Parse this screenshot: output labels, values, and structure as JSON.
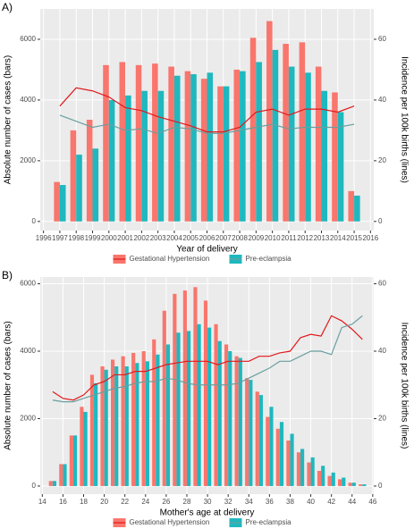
{
  "chart_data": [
    {
      "type": "bar_line",
      "label": "A)",
      "xlabel": "Year of delivery",
      "ylabel": "Absolute number of cases (bars)",
      "y2label": "Incidence per 100k births (lines)",
      "x": [
        1997,
        1998,
        1999,
        2000,
        2001,
        2002,
        2003,
        2004,
        2005,
        2006,
        2007,
        2008,
        2009,
        2010,
        2011,
        2012,
        2013,
        2014,
        2015
      ],
      "xlim": [
        1995.8,
        2016.2
      ],
      "xticks": [
        1996,
        1997,
        1998,
        1999,
        2000,
        2001,
        2002,
        2003,
        2004,
        2005,
        2006,
        2007,
        2008,
        2009,
        2010,
        2011,
        2012,
        2013,
        2014,
        2015,
        2016
      ],
      "ylim": [
        -300,
        7000
      ],
      "yticks": [
        0,
        2000,
        4000,
        6000
      ],
      "y2lim": [
        -3,
        70
      ],
      "y2ticks": [
        0,
        20,
        40,
        60
      ],
      "grid": true,
      "series": [
        {
          "name": "Gestational Hypertension",
          "color": "#f8766d",
          "values": [
            1300,
            3000,
            3350,
            5150,
            5250,
            5150,
            5200,
            5100,
            4950,
            4700,
            4450,
            5000,
            6050,
            6600,
            5850,
            5900,
            5100,
            4250,
            1000
          ]
        },
        {
          "name": "Pre-eclampsia",
          "color": "#1fb8be",
          "values": [
            1200,
            2200,
            2400,
            4000,
            4150,
            4300,
            4300,
            4800,
            4850,
            4900,
            4450,
            4950,
            5250,
            5650,
            5100,
            4900,
            4300,
            3600,
            850
          ]
        },
        {
          "type": "line",
          "axis": "y2",
          "color": "#e0191c",
          "values": [
            38,
            44,
            43,
            41,
            37.5,
            36.5,
            34.5,
            33,
            31.5,
            29.5,
            29.5,
            31,
            36,
            37,
            35,
            37,
            37,
            36,
            38
          ]
        },
        {
          "type": "line",
          "axis": "y2",
          "color": "#6a9fa0",
          "values": [
            35,
            33,
            31,
            32,
            30,
            30.5,
            29,
            31,
            30.5,
            29,
            29,
            30,
            31,
            32,
            30.5,
            31,
            31,
            31,
            32
          ]
        }
      ]
    },
    {
      "type": "bar_line",
      "label": "B)",
      "xlabel": "Mother's age at delivery",
      "ylabel": "Absolute number of cases (bars)",
      "y2label": "Incidence per 100k births (lines)",
      "x": [
        15,
        16,
        17,
        18,
        19,
        20,
        21,
        22,
        23,
        24,
        25,
        26,
        27,
        28,
        29,
        30,
        31,
        32,
        33,
        34,
        35,
        36,
        37,
        38,
        39,
        40,
        41,
        42,
        43,
        44,
        45
      ],
      "xlim": [
        13.8,
        46.1
      ],
      "xticks": [
        14,
        16,
        18,
        20,
        22,
        24,
        26,
        28,
        30,
        32,
        34,
        36,
        38,
        40,
        42,
        44,
        46
      ],
      "ylim": [
        -240,
        6200
      ],
      "yticks": [
        0,
        2000,
        4000,
        6000
      ],
      "y2lim": [
        -2.4,
        62
      ],
      "y2ticks": [
        0,
        20,
        40,
        60
      ],
      "grid": true,
      "series": [
        {
          "name": "Gestational Hypertension",
          "color": "#f8766d",
          "values": [
            150,
            650,
            1500,
            2350,
            3300,
            3550,
            3750,
            3850,
            3950,
            4000,
            4350,
            5200,
            5700,
            5800,
            5900,
            5500,
            4800,
            4200,
            3850,
            3200,
            2800,
            2050,
            1700,
            1350,
            1000,
            700,
            450,
            300,
            200,
            100,
            50
          ]
        },
        {
          "name": "Pre-eclampsia",
          "color": "#1fb8be",
          "values": [
            150,
            650,
            1500,
            2200,
            3050,
            3450,
            3550,
            3550,
            3650,
            3700,
            3900,
            4200,
            4550,
            4600,
            4800,
            4700,
            4300,
            4000,
            3800,
            3150,
            2700,
            2350,
            1900,
            1550,
            1100,
            850,
            600,
            400,
            250,
            100,
            50
          ]
        },
        {
          "type": "line",
          "axis": "y2",
          "color": "#e0191c",
          "values": [
            28,
            26,
            25.5,
            27,
            30,
            31,
            33,
            33,
            34,
            34,
            35,
            36,
            36.5,
            37,
            37,
            37,
            36,
            37,
            37,
            37,
            38.5,
            38.5,
            39.5,
            40,
            44,
            45,
            44.5,
            50.5,
            49,
            46.5,
            43.5
          ]
        },
        {
          "type": "line",
          "axis": "y2",
          "color": "#6a9fa0",
          "values": [
            25.5,
            25,
            25,
            26,
            27,
            28,
            29,
            29.5,
            30.5,
            31,
            31,
            32,
            31.5,
            30.5,
            30,
            30,
            30,
            30,
            30.5,
            32,
            33.5,
            35,
            37,
            37,
            38.5,
            40,
            40,
            39,
            47,
            48,
            50.5
          ]
        }
      ]
    }
  ]
}
